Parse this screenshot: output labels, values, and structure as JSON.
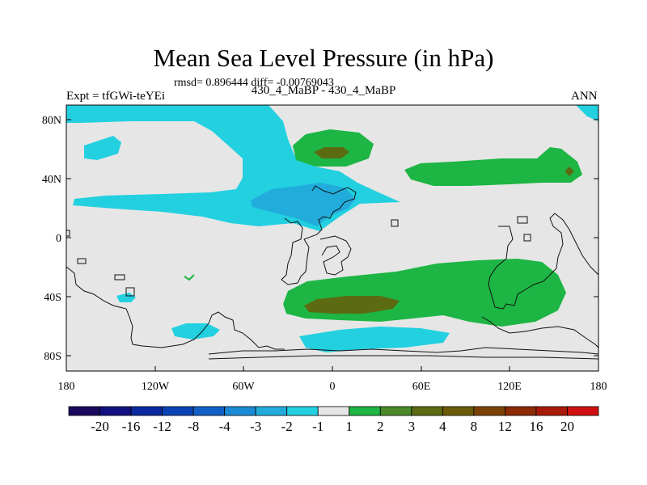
{
  "title": "Mean Sea Level Pressure (in hPa)",
  "stats": "rmsd= 0.896444 diff= -0.00769043",
  "expt_label": "Expt = tfGWi-teYEi",
  "case_label": "430_4_MaBP - 430_4_MaBP",
  "season": "ANN",
  "axes": {
    "x_ticks": [
      "180",
      "120W",
      "60W",
      "0",
      "60E",
      "120E",
      "180"
    ],
    "y_ticks": [
      "80N",
      "40N",
      "0",
      "40S",
      "80S"
    ]
  },
  "colorbar": {
    "labels": [
      "-20",
      "-16",
      "-12",
      "-8",
      "-4",
      "-3",
      "-2",
      "-1",
      "1",
      "2",
      "3",
      "4",
      "8",
      "12",
      "16",
      "20"
    ],
    "colors": [
      "#1a0a5e",
      "#101080",
      "#0c2aa0",
      "#0a44b4",
      "#1060c8",
      "#1a8ad6",
      "#21acdc",
      "#22d0e0",
      "#e6e6e6",
      "#1db544",
      "#4a8a2a",
      "#5c6b12",
      "#6b5a08",
      "#7a4206",
      "#8c2a06",
      "#a81a08",
      "#d01010"
    ]
  },
  "field_colors": {
    "background": "#e6e6e6",
    "neg_light": "#22d0e0",
    "neg_mid": "#21acdc",
    "pos_light": "#1db544",
    "pos_dark": "#5c6b12"
  }
}
